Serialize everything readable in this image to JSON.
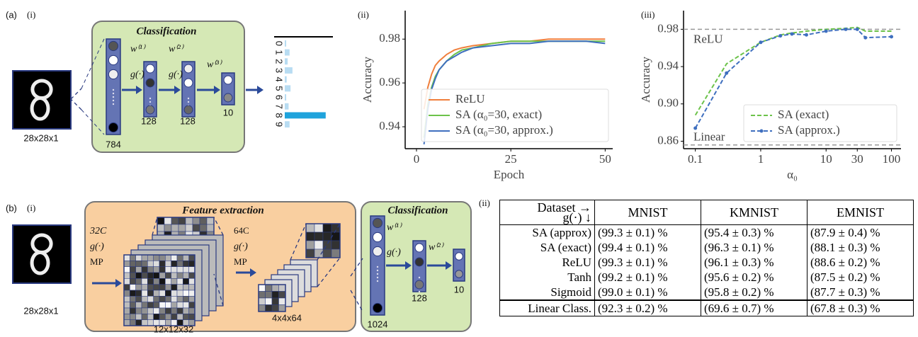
{
  "panel_a": {
    "label": "(a)",
    "sub_i": "(i)",
    "sub_ii": "(ii)",
    "sub_iii": "(iii)",
    "input": "28x28x1",
    "box_title": "Classification",
    "weights": [
      "w⁽¹⁾",
      "w⁽²⁾",
      "w⁽³⁾"
    ],
    "activation": "g(·)",
    "layers": [
      "784",
      "128",
      "128",
      "10"
    ]
  },
  "panel_b": {
    "label": "(b)",
    "sub_i": "(i)",
    "sub_ii": "(ii)",
    "input": "28x28x1",
    "fe_title": "Feature extraction",
    "cls_title": "Classification",
    "conv1": [
      "32C",
      "g(·)",
      "MP"
    ],
    "conv2": [
      "64C",
      "g(·)",
      "MP"
    ],
    "maps": [
      "12x12x32",
      "4x4x64"
    ],
    "layers": [
      "1024",
      "128",
      "10"
    ],
    "weights": [
      "w⁽¹⁾",
      "w⁽²⁾"
    ],
    "activation": "g(·)"
  },
  "chart_data": [
    {
      "type": "bar",
      "orientation": "horizontal",
      "categories": [
        "0",
        "1",
        "2",
        "3",
        "4",
        "5",
        "6",
        "7",
        "8",
        "9"
      ],
      "values": [
        0.03,
        0.1,
        0.06,
        0.16,
        0.04,
        0.12,
        0.03,
        0.08,
        0.85,
        0.1
      ],
      "colors": [
        "#b8dcf2",
        "#b8dcf2",
        "#b8dcf2",
        "#b8dcf2",
        "#b8dcf2",
        "#b8dcf2",
        "#b8dcf2",
        "#b8dcf2",
        "#1fa3dc",
        "#b8dcf2"
      ],
      "xlim": [
        0,
        1
      ]
    },
    {
      "type": "line",
      "xlabel": "Epoch",
      "ylabel": "Accuracy",
      "x": [
        2,
        3,
        4,
        5,
        6,
        8,
        10,
        12,
        15,
        20,
        25,
        30,
        35,
        40,
        45,
        50
      ],
      "series": [
        {
          "name": "ReLU",
          "color": "#f07f3c",
          "values": [
            0.948,
            0.958,
            0.964,
            0.968,
            0.97,
            0.973,
            0.975,
            0.976,
            0.977,
            0.978,
            0.979,
            0.979,
            0.98,
            0.98,
            0.98,
            0.98
          ]
        },
        {
          "name": "SA (α₀=30, exact)",
          "color": "#6cc24a",
          "values": [
            0.935,
            0.95,
            0.958,
            0.963,
            0.966,
            0.97,
            0.973,
            0.975,
            0.976,
            0.978,
            0.979,
            0.979,
            0.979,
            0.979,
            0.979,
            0.979
          ]
        },
        {
          "name": "SA (α₀=30, approx.)",
          "color": "#3f6fbf",
          "values": [
            0.932,
            0.948,
            0.957,
            0.962,
            0.966,
            0.97,
            0.972,
            0.974,
            0.976,
            0.977,
            0.978,
            0.978,
            0.979,
            0.979,
            0.979,
            0.978
          ]
        }
      ],
      "xlim": [
        -3,
        52
      ],
      "ylim": [
        0.93,
        0.993
      ],
      "xticks": [
        0,
        25,
        50
      ],
      "yticks": [
        0.94,
        0.96,
        0.98
      ],
      "legend": "lower right"
    },
    {
      "type": "line",
      "xlabel": "α₀",
      "ylabel": "Accuracy",
      "xscale": "log",
      "dashed": true,
      "x": [
        0.1,
        0.3,
        1,
        2,
        3,
        5,
        10,
        20,
        30,
        40,
        100
      ],
      "series": [
        {
          "name": "SA (exact)",
          "color": "#6cc24a",
          "values": [
            0.888,
            0.943,
            0.966,
            0.974,
            0.976,
            0.978,
            0.98,
            0.981,
            0.982,
            0.978,
            0.978
          ]
        },
        {
          "name": "SA (approx.)",
          "color": "#3f6fbf",
          "marker": true,
          "values": [
            0.874,
            0.933,
            0.966,
            0.973,
            0.975,
            0.974,
            0.978,
            0.98,
            0.98,
            0.971,
            0.972
          ]
        }
      ],
      "reference_lines": [
        {
          "label": "ReLU",
          "value": 0.98
        },
        {
          "label": "Linear",
          "value": 0.856
        }
      ],
      "xlim": [
        0.066,
        140
      ],
      "ylim": [
        0.852,
        1.0
      ],
      "xticks": [
        0.1,
        1,
        10,
        30,
        100
      ],
      "yticks": [
        0.86,
        {
          "value": 0.9,
          "label": "0.90"
        },
        0.94,
        0.98
      ],
      "legend": "lower right"
    }
  ],
  "table": {
    "corner": [
      "Dataset →",
      "g(·) ↓"
    ],
    "columns": [
      "MNIST",
      "KMNIST",
      "EMNIST"
    ],
    "rows": [
      [
        "SA (approx)",
        "(99.3 ± 0.1) %",
        "(95.4 ± 0.3) %",
        "(87.9 ± 0.4) %"
      ],
      [
        "SA (exact)",
        "(99.4 ± 0.1) %",
        "(96.3 ± 0.1) %",
        "(88.1 ± 0.3) %"
      ],
      [
        "ReLU",
        "(99.3 ± 0.1) %",
        "(96.1 ± 0.3) %",
        "(88.6 ± 0.2) %"
      ],
      [
        "Tanh",
        "(99.2 ± 0.1) %",
        "(95.6 ± 0.2) %",
        "(87.5 ± 0.2) %"
      ],
      [
        "Sigmoid",
        "(99.0 ± 0.1) %",
        "(95.8 ± 0.2) %",
        "(87.7 ± 0.3) %"
      ],
      [
        "Linear Class.",
        "(92.3 ± 0.2) %",
        "(69.6 ± 0.7) %",
        "(67.8 ± 0.3) %"
      ]
    ]
  }
}
